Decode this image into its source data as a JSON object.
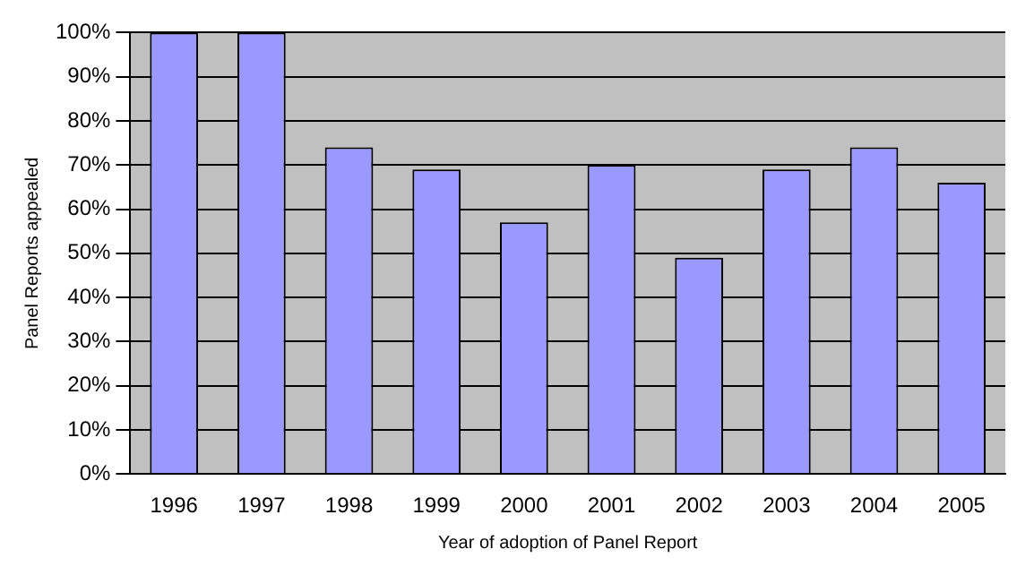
{
  "chart_data": {
    "type": "bar",
    "xlabel": "Year of adoption of Panel Report",
    "ylabel": "Panel Reports appealed",
    "categories": [
      "1996",
      "1997",
      "1998",
      "1999",
      "2000",
      "2001",
      "2002",
      "2003",
      "2004",
      "2005"
    ],
    "values": [
      100,
      100,
      74,
      69,
      57,
      70,
      49,
      69,
      74,
      66
    ],
    "color": "#9999ff",
    "ylim": [
      0,
      100
    ],
    "yticks": [
      {
        "value": 0,
        "label": "0%"
      },
      {
        "value": 10,
        "label": "10%"
      },
      {
        "value": 20,
        "label": "20%"
      },
      {
        "value": 30,
        "label": "30%"
      },
      {
        "value": 40,
        "label": "40%"
      },
      {
        "value": 50,
        "label": "50%"
      },
      {
        "value": 60,
        "label": "60%"
      },
      {
        "value": 70,
        "label": "70%"
      },
      {
        "value": 80,
        "label": "80%"
      },
      {
        "value": 90,
        "label": "90%"
      },
      {
        "value": 100,
        "label": "100%"
      }
    ],
    "grid": "y",
    "legend": false
  }
}
